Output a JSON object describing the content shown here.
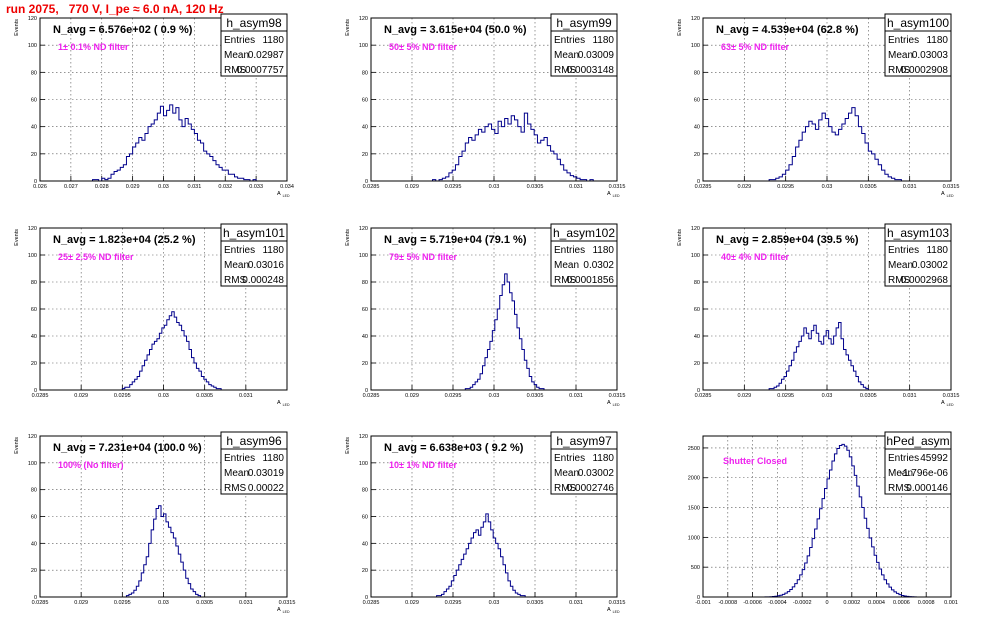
{
  "page_title": "run 2075,   770 V, I_pe ≈ 6.0 nA, 120 Hz",
  "stats_labels": {
    "entries": "Entries",
    "mean": "Mean",
    "rms": "RMS"
  },
  "chart_data": [
    {
      "type": "bar",
      "name": "h_asym98",
      "ylabel": "Events",
      "xlabel": "A",
      "xlabel_sub": "LED",
      "nav_text": "N_avg = 6.576e+02 ( 0.9 %)",
      "filter_text": "1± 0.1% ND filter",
      "entries": "1180",
      "mean": "0.02987",
      "rms": "0.0007757",
      "xlim": [
        0.026,
        0.034
      ],
      "ylim": [
        0,
        120
      ],
      "xticks": [
        "0.026",
        "0.027",
        "0.028",
        "0.029",
        "0.03",
        "0.031",
        "0.032",
        "0.033",
        "0.034"
      ],
      "yticks": [
        "0",
        "20",
        "40",
        "60",
        "80",
        "100",
        "120"
      ],
      "bin_start": 0.0277,
      "bin_width": 0.0001,
      "values": [
        1,
        1,
        0,
        2,
        1,
        2,
        5,
        7,
        8,
        10,
        12,
        18,
        20,
        25,
        28,
        32,
        30,
        35,
        40,
        42,
        45,
        50,
        55,
        48,
        52,
        56,
        50,
        54,
        45,
        40,
        46,
        42,
        38,
        35,
        30,
        28,
        22,
        20,
        18,
        15,
        12,
        10,
        8,
        8,
        5,
        5,
        3,
        2,
        2,
        1,
        1,
        0,
        1
      ]
    },
    {
      "type": "bar",
      "name": "h_asym99",
      "ylabel": "Events",
      "xlabel": "A",
      "xlabel_sub": "LED",
      "nav_text": "N_avg = 3.615e+04 (50.0 %)",
      "filter_text": "50± 5% ND filter",
      "entries": "1180",
      "mean": "0.03009",
      "rms": "0.0003148",
      "xlim": [
        0.0285,
        0.0315
      ],
      "ylim": [
        0,
        120
      ],
      "xticks": [
        "0.0285",
        "0.029",
        "0.0295",
        "0.03",
        "0.0305",
        "0.031",
        "0.0315"
      ],
      "yticks": [
        "0",
        "20",
        "40",
        "60",
        "80",
        "100",
        "120"
      ],
      "bin_start": 0.02925,
      "bin_width": 4e-05,
      "values": [
        1,
        0,
        1,
        2,
        3,
        6,
        8,
        12,
        18,
        22,
        28,
        32,
        30,
        34,
        38,
        36,
        40,
        42,
        38,
        35,
        44,
        40,
        46,
        42,
        48,
        45,
        40,
        36,
        50,
        42,
        38,
        34,
        28,
        30,
        32,
        26,
        22,
        20,
        16,
        12,
        8,
        6,
        4,
        3,
        2,
        1,
        1,
        0,
        1
      ]
    },
    {
      "type": "bar",
      "name": "h_asym100",
      "ylabel": "Events",
      "xlabel": "A",
      "xlabel_sub": "LED",
      "nav_text": "N_avg = 4.539e+04 (62.8 %)",
      "filter_text": "63± 5% ND filter",
      "entries": "1180",
      "mean": "0.03003",
      "rms": "0.0002908",
      "xlim": [
        0.0285,
        0.0315
      ],
      "ylim": [
        0,
        120
      ],
      "xticks": [
        "0.0285",
        "0.029",
        "0.0295",
        "0.03",
        "0.0305",
        "0.031",
        "0.0315"
      ],
      "yticks": [
        "0",
        "20",
        "40",
        "60",
        "80",
        "100",
        "120"
      ],
      "bin_start": 0.0293,
      "bin_width": 4e-05,
      "values": [
        1,
        1,
        2,
        3,
        5,
        8,
        12,
        18,
        25,
        30,
        36,
        40,
        44,
        42,
        38,
        45,
        50,
        46,
        40,
        36,
        34,
        38,
        42,
        46,
        50,
        54,
        48,
        40,
        35,
        28,
        22,
        20,
        16,
        12,
        8,
        5,
        3,
        2,
        1,
        1
      ]
    },
    {
      "type": "bar",
      "name": "h_asym101",
      "ylabel": "Events",
      "xlabel": "A",
      "xlabel_sub": "LED",
      "nav_text": "N_avg = 1.823e+04 (25.2 %)",
      "filter_text": "25± 2.5% ND filter",
      "entries": "1180",
      "mean": "0.03016",
      "rms": "0.000248",
      "xlim": [
        0.0285,
        0.0315
      ],
      "ylim": [
        0,
        120
      ],
      "xticks": [
        "0.0285",
        "0.029",
        "0.0295",
        "0.03",
        "0.0305",
        "0.031"
      ],
      "yticks": [
        "0",
        "20",
        "40",
        "60",
        "80",
        "100",
        "120"
      ],
      "bin_start": 0.0295,
      "bin_width": 3e-05,
      "values": [
        1,
        2,
        2,
        4,
        6,
        8,
        10,
        14,
        18,
        22,
        26,
        30,
        34,
        36,
        38,
        42,
        46,
        48,
        52,
        55,
        58,
        54,
        50,
        48,
        44,
        40,
        36,
        30,
        24,
        20,
        16,
        14,
        10,
        8,
        6,
        4,
        3,
        2,
        1,
        1
      ]
    },
    {
      "type": "bar",
      "name": "h_asym102",
      "ylabel": "Events",
      "xlabel": "A",
      "xlabel_sub": "LED",
      "nav_text": "N_avg = 5.719e+04 (79.1 %)",
      "filter_text": "79± 5% ND filter",
      "entries": "1180",
      "mean": "0.0302",
      "rms": "0.0001856",
      "xlim": [
        0.0285,
        0.0315
      ],
      "ylim": [
        0,
        120
      ],
      "xticks": [
        "0.0285",
        "0.029",
        "0.0295",
        "0.03",
        "0.0305",
        "0.031",
        "0.0315"
      ],
      "yticks": [
        "0",
        "20",
        "40",
        "60",
        "80",
        "100",
        "120"
      ],
      "bin_start": 0.02965,
      "bin_width": 3e-05,
      "values": [
        1,
        1,
        2,
        4,
        6,
        8,
        12,
        18,
        24,
        30,
        36,
        44,
        52,
        60,
        70,
        78,
        86,
        80,
        72,
        66,
        56,
        46,
        38,
        30,
        22,
        16,
        10,
        6,
        4,
        2,
        1,
        1
      ]
    },
    {
      "type": "bar",
      "name": "h_asym103",
      "ylabel": "Events",
      "xlabel": "A",
      "xlabel_sub": "LED",
      "nav_text": "N_avg = 2.859e+04 (39.5 %)",
      "filter_text": "40± 4% ND filter",
      "entries": "1180",
      "mean": "0.03002",
      "rms": "0.0002968",
      "xlim": [
        0.0285,
        0.0315
      ],
      "ylim": [
        0,
        120
      ],
      "xticks": [
        "0.0285",
        "0.029",
        "0.0295",
        "0.03",
        "0.0305",
        "0.031",
        "0.0315"
      ],
      "yticks": [
        "0",
        "20",
        "40",
        "60",
        "80",
        "100",
        "120"
      ],
      "bin_start": 0.0293,
      "bin_width": 3e-05,
      "values": [
        1,
        1,
        2,
        3,
        5,
        8,
        10,
        14,
        18,
        22,
        28,
        32,
        36,
        40,
        46,
        42,
        38,
        44,
        48,
        42,
        36,
        34,
        40,
        44,
        38,
        34,
        40,
        46,
        50,
        38,
        30,
        26,
        22,
        18,
        14,
        10,
        6,
        4,
        2,
        1
      ]
    },
    {
      "type": "bar",
      "name": "h_asym96",
      "ylabel": "Events",
      "xlabel": "A",
      "xlabel_sub": "LED",
      "nav_text": "N_avg = 7.231e+04 (100.0 %)",
      "filter_text": "100% (No filter)",
      "entries": "1180",
      "mean": "0.03019",
      "rms": "0.00022",
      "xlim": [
        0.0285,
        0.0315
      ],
      "ylim": [
        0,
        120
      ],
      "xticks": [
        "0.0285",
        "0.029",
        "0.0295",
        "0.03",
        "0.0305",
        "0.031",
        "0.0315"
      ],
      "yticks": [
        "0",
        "20",
        "40",
        "60",
        "80",
        "100",
        "120"
      ],
      "bin_start": 0.02955,
      "bin_width": 3e-05,
      "values": [
        1,
        2,
        3,
        5,
        8,
        12,
        18,
        24,
        30,
        40,
        50,
        58,
        66,
        68,
        60,
        62,
        56,
        52,
        48,
        44,
        38,
        32,
        26,
        20,
        14,
        10,
        6,
        4,
        2,
        1
      ]
    },
    {
      "type": "bar",
      "name": "h_asym97",
      "ylabel": "Events",
      "xlabel": "A",
      "xlabel_sub": "LED",
      "nav_text": "N_avg = 6.638e+03 ( 9.2 %)",
      "filter_text": "10± 1% ND filter",
      "entries": "1180",
      "mean": "0.03002",
      "rms": "0.0002746",
      "xlim": [
        0.0285,
        0.0315
      ],
      "ylim": [
        0,
        120
      ],
      "xticks": [
        "0.0285",
        "0.029",
        "0.0295",
        "0.03",
        "0.0305",
        "0.031",
        "0.0315"
      ],
      "yticks": [
        "0",
        "20",
        "40",
        "60",
        "80",
        "100",
        "120"
      ],
      "bin_start": 0.0293,
      "bin_width": 3e-05,
      "values": [
        1,
        1,
        2,
        4,
        6,
        8,
        12,
        16,
        20,
        24,
        28,
        32,
        36,
        40,
        44,
        48,
        50,
        46,
        52,
        56,
        62,
        56,
        50,
        44,
        40,
        36,
        30,
        24,
        18,
        12,
        8,
        5,
        3,
        2,
        1,
        1
      ]
    },
    {
      "type": "bar",
      "name": "hPed_asym",
      "ylabel": "",
      "xlabel": "",
      "xlabel_sub": "",
      "nav_text": "",
      "filter_text": "Shutter Closed",
      "entries": "45992",
      "mean": "-1.796e-06",
      "rms": "0.000146",
      "xlim": [
        -0.001,
        0.001
      ],
      "ylim": [
        0,
        2700
      ],
      "xticks": [
        "-0.001",
        "-0.0008",
        "-0.0006",
        "-0.0004",
        "-0.0002",
        "0",
        "0.0002",
        "0.0004",
        "0.0006",
        "0.0008",
        "0.001"
      ],
      "yticks": [
        "0",
        "500",
        "1000",
        "1500",
        "2000",
        "2500"
      ],
      "bin_start": -0.0005,
      "bin_width": 2e-05,
      "values": [
        2,
        3,
        5,
        8,
        12,
        20,
        30,
        45,
        65,
        90,
        125,
        170,
        225,
        290,
        370,
        460,
        570,
        690,
        830,
        980,
        1140,
        1310,
        1480,
        1650,
        1820,
        1980,
        2130,
        2280,
        2400,
        2490,
        2540,
        2560,
        2530,
        2460,
        2350,
        2200,
        2040,
        1860,
        1680,
        1500,
        1320,
        1150,
        990,
        840,
        700,
        580,
        470,
        370,
        290,
        220,
        165,
        120,
        85,
        60,
        40,
        26,
        16,
        10,
        6,
        4,
        2,
        1
      ]
    }
  ]
}
